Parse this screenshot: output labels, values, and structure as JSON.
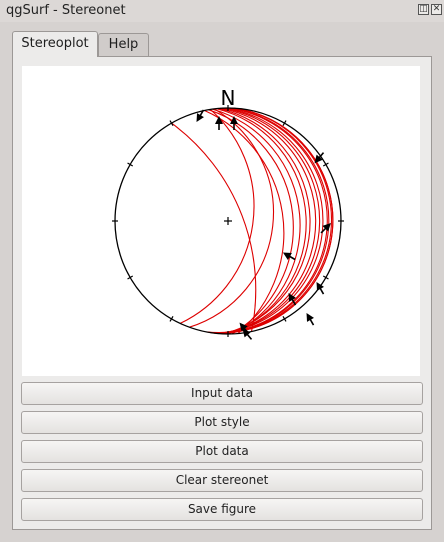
{
  "window": {
    "title": "qgSurf - Stereonet",
    "float_icon": "float-icon",
    "close_icon": "close-icon"
  },
  "tabs": [
    {
      "label": "Stereoplot",
      "active": true
    },
    {
      "label": "Help",
      "active": false
    }
  ],
  "stereonet": {
    "north_label": "N",
    "great_circle_color": "#dd0000",
    "primitive_color": "#000000"
  },
  "buttons": {
    "input_data": "Input data",
    "plot_style": "Plot style",
    "plot_data": "Plot data",
    "clear_stereonet": "Clear stereonet",
    "save_figure": "Save figure"
  }
}
